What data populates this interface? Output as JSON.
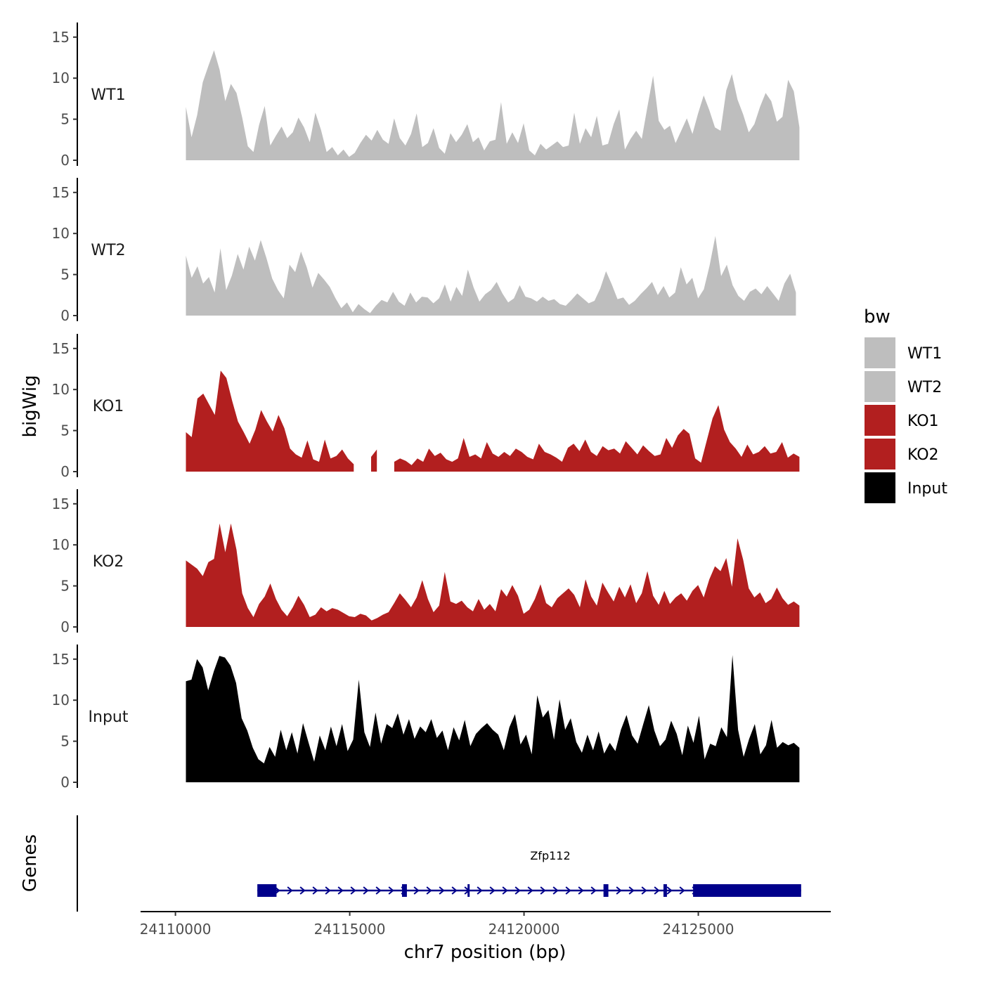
{
  "chart_data": {
    "type": "area",
    "ylabel": "bigWig",
    "xlabel": "chr7 position (bp)",
    "genes_label": "Genes",
    "ylim": [
      0,
      15.5
    ],
    "yticks": [
      0,
      5,
      10,
      15
    ],
    "xlim": [
      24109000,
      24128800
    ],
    "xticks": [
      24110000,
      24115000,
      24120000,
      24125000
    ],
    "x_tick_labels": [
      "24110000",
      "24115000",
      "24120000",
      "24125000"
    ],
    "colors": {
      "WT1": "#bebebe",
      "WT2": "#bebebe",
      "KO1": "#b21f1f",
      "KO2": "#b21f1f",
      "Input": "#000000",
      "gene": "#00008b"
    },
    "series": [
      {
        "name": "WT1",
        "x_start": 24110300,
        "x_end": 24127900,
        "values": [
          6.5,
          2.8,
          5.5,
          9.5,
          11.5,
          13.4,
          11,
          7.2,
          9.3,
          8.2,
          5.2,
          1.7,
          1,
          4.3,
          6.6,
          1.8,
          3,
          4.1,
          2.7,
          3.4,
          5.2,
          4,
          2.2,
          5.8,
          3.7,
          1,
          1.6,
          0.6,
          1.3,
          0.4,
          0.9,
          2.1,
          3.1,
          2.4,
          3.7,
          2.5,
          2,
          5.1,
          2.7,
          1.8,
          3.2,
          5.7,
          1.6,
          2.1,
          3.9,
          1.5,
          0.8,
          3.3,
          2.2,
          3.1,
          4.4,
          2.2,
          2.8,
          1.2,
          2.3,
          2.5,
          7.1,
          2,
          3.4,
          2.1,
          4.5,
          1.2,
          0.6,
          2,
          1.3,
          1.8,
          2.3,
          1.6,
          1.8,
          5.8,
          2,
          3.9,
          2.8,
          5.4,
          1.8,
          2,
          4.4,
          6.2,
          1.3,
          2.6,
          3.6,
          2.6,
          6.5,
          10.3,
          4.8,
          3.7,
          4.2,
          2.1,
          3.6,
          5.1,
          3.2,
          5.7,
          7.9,
          6.1,
          4,
          3.6,
          8.5,
          10.5,
          7.4,
          5.6,
          3.4,
          4.4,
          6.5,
          8.2,
          7.2,
          4.7,
          5.3,
          9.8,
          8.4,
          4
        ]
      },
      {
        "name": "WT2",
        "x_start": 24110300,
        "x_end": 24127800,
        "values": [
          7.3,
          4.6,
          6,
          3.9,
          4.7,
          2.8,
          8.2,
          3.1,
          4.9,
          7.5,
          5.6,
          8.4,
          6.7,
          9.2,
          7,
          4.5,
          3.1,
          2.1,
          6.2,
          5.3,
          7.8,
          5.9,
          3.4,
          5.2,
          4.4,
          3.5,
          2.1,
          0.9,
          1.6,
          0.4,
          1.4,
          0.8,
          0.3,
          1.2,
          1.9,
          1.6,
          2.9,
          1.7,
          1.2,
          2.8,
          1.6,
          2.3,
          2.2,
          1.5,
          2.1,
          3.8,
          1.7,
          3.5,
          2.4,
          5.6,
          3.4,
          1.7,
          2.6,
          3.1,
          4.1,
          2.7,
          1.6,
          2.1,
          3.7,
          2.3,
          2.1,
          1.7,
          2.3,
          1.8,
          2,
          1.4,
          1.2,
          1.9,
          2.7,
          2.1,
          1.5,
          1.8,
          3.3,
          5.4,
          3.8,
          2,
          2.2,
          1.3,
          1.8,
          2.6,
          3.3,
          4.1,
          2.5,
          3.6,
          2.2,
          2.8,
          5.9,
          3.8,
          4.6,
          2.1,
          3.2,
          6.1,
          9.7,
          4.8,
          6.2,
          3.7,
          2.4,
          1.8,
          2.9,
          3.3,
          2.6,
          3.6,
          2.7,
          1.8,
          3.9,
          5.1,
          2.8
        ]
      },
      {
        "name": "KO1",
        "x_start": 24110300,
        "x_end": 24127900,
        "values": [
          4.8,
          4.2,
          8.9,
          9.5,
          8.2,
          6.9,
          12.3,
          11.4,
          8.6,
          6.1,
          4.8,
          3.4,
          5.1,
          7.5,
          6.1,
          4.9,
          6.9,
          5.3,
          2.8,
          2.1,
          1.7,
          3.8,
          1.5,
          1.2,
          3.9,
          1.6,
          1.9,
          2.7,
          1.6,
          0.9,
          null,
          null,
          1.8,
          2.7,
          null,
          null,
          1.2,
          1.6,
          1.3,
          0.8,
          1.6,
          1.2,
          2.8,
          1.9,
          2.3,
          1.5,
          1.2,
          1.6,
          4.1,
          1.8,
          2.1,
          1.6,
          3.6,
          2.2,
          1.8,
          2.4,
          1.9,
          2.8,
          2.4,
          1.8,
          1.5,
          3.4,
          2.4,
          2.1,
          1.7,
          1.2,
          2.9,
          3.4,
          2.5,
          3.9,
          2.4,
          1.9,
          3.1,
          2.6,
          2.8,
          2.2,
          3.7,
          2.9,
          2.1,
          3.2,
          2.5,
          1.9,
          2.1,
          4.1,
          2.9,
          4.4,
          5.2,
          4.6,
          1.6,
          1.1,
          3.8,
          6.5,
          8.1,
          5.1,
          3.6,
          2.8,
          1.8,
          3.3,
          2.1,
          2.4,
          3.1,
          2.2,
          2.4,
          3.6,
          1.7,
          2.2,
          1.8
        ]
      },
      {
        "name": "KO2",
        "x_start": 24110300,
        "x_end": 24127900,
        "values": [
          8.1,
          7.6,
          7.1,
          6.2,
          7.9,
          8.3,
          12.6,
          9.1,
          12.6,
          9.4,
          4.1,
          2.3,
          1.2,
          2.8,
          3.7,
          5.3,
          3.4,
          2.1,
          1.3,
          2.4,
          3.8,
          2.7,
          1.2,
          1.5,
          2.4,
          1.9,
          2.3,
          2.1,
          1.7,
          1.3,
          1.2,
          1.6,
          1.4,
          0.8,
          1.1,
          1.5,
          1.8,
          2.9,
          4.1,
          3.3,
          2.4,
          3.6,
          5.7,
          3.4,
          1.8,
          2.6,
          6.7,
          3.1,
          2.8,
          3.2,
          2.4,
          1.9,
          3.4,
          2.1,
          2.8,
          1.9,
          4.6,
          3.7,
          5.1,
          3.8,
          1.6,
          2.1,
          3.4,
          5.2,
          2.9,
          2.4,
          3.5,
          4.1,
          4.7,
          3.9,
          2.4,
          5.8,
          3.7,
          2.6,
          5.4,
          4.2,
          3.1,
          4.9,
          3.6,
          5.2,
          2.9,
          4.1,
          6.8,
          3.8,
          2.7,
          4.4,
          2.8,
          3.6,
          4.1,
          3.2,
          4.4,
          5.1,
          3.6,
          5.8,
          7.4,
          6.8,
          8.4,
          4.9,
          10.8,
          8.2,
          4.7,
          3.6,
          4.2,
          2.9,
          3.4,
          4.8,
          3.5,
          2.7,
          3.1,
          2.6
        ]
      },
      {
        "name": "Input",
        "x_start": 24110300,
        "x_end": 24127900,
        "values": [
          12.3,
          12.5,
          15,
          14,
          11.2,
          13.5,
          15.4,
          15.2,
          14.2,
          12.1,
          7.8,
          6.3,
          4.2,
          2.8,
          2.3,
          4.3,
          3.1,
          6.4,
          3.9,
          6.1,
          3.5,
          7.2,
          4.8,
          2.5,
          5.7,
          3.9,
          6.8,
          4.4,
          7.1,
          3.8,
          5.2,
          12.5,
          6.1,
          4.3,
          8.5,
          4.7,
          7.1,
          6.6,
          8.4,
          5.8,
          7.7,
          5.3,
          6.8,
          6.1,
          7.7,
          5.4,
          6.3,
          3.9,
          6.7,
          5.1,
          7.6,
          4.4,
          5.9,
          6.6,
          7.2,
          6.4,
          5.8,
          3.9,
          6.7,
          8.3,
          4.6,
          5.8,
          3.4,
          10.6,
          7.9,
          8.8,
          5.2,
          10.1,
          6.4,
          7.8,
          4.9,
          3.6,
          5.8,
          3.9,
          6.2,
          3.5,
          4.8,
          3.8,
          6.4,
          8.2,
          5.7,
          4.7,
          7.1,
          9.4,
          6.3,
          4.4,
          5.2,
          7.5,
          5.9,
          3.3,
          6.9,
          4.8,
          8.1,
          2.8,
          4.7,
          4.4,
          6.7,
          5.5,
          15.5,
          6.4,
          3.1,
          5.3,
          7.1,
          3.4,
          4.5,
          7.6,
          4.2,
          4.9,
          4.5,
          4.8,
          4.2
        ]
      }
    ],
    "genes": [
      {
        "name": "Zfp112",
        "strand": "+",
        "start": 24112350,
        "end": 24127950,
        "exons": [
          [
            24112350,
            24112900
          ],
          [
            24116500,
            24116640
          ],
          [
            24118380,
            24118430
          ],
          [
            24122280,
            24122420
          ],
          [
            24124000,
            24124100
          ],
          [
            24124850,
            24127950
          ]
        ]
      }
    ],
    "legend": {
      "title": "bw",
      "placement": "right",
      "entries": [
        "WT1",
        "WT2",
        "KO1",
        "KO2",
        "Input"
      ]
    }
  }
}
